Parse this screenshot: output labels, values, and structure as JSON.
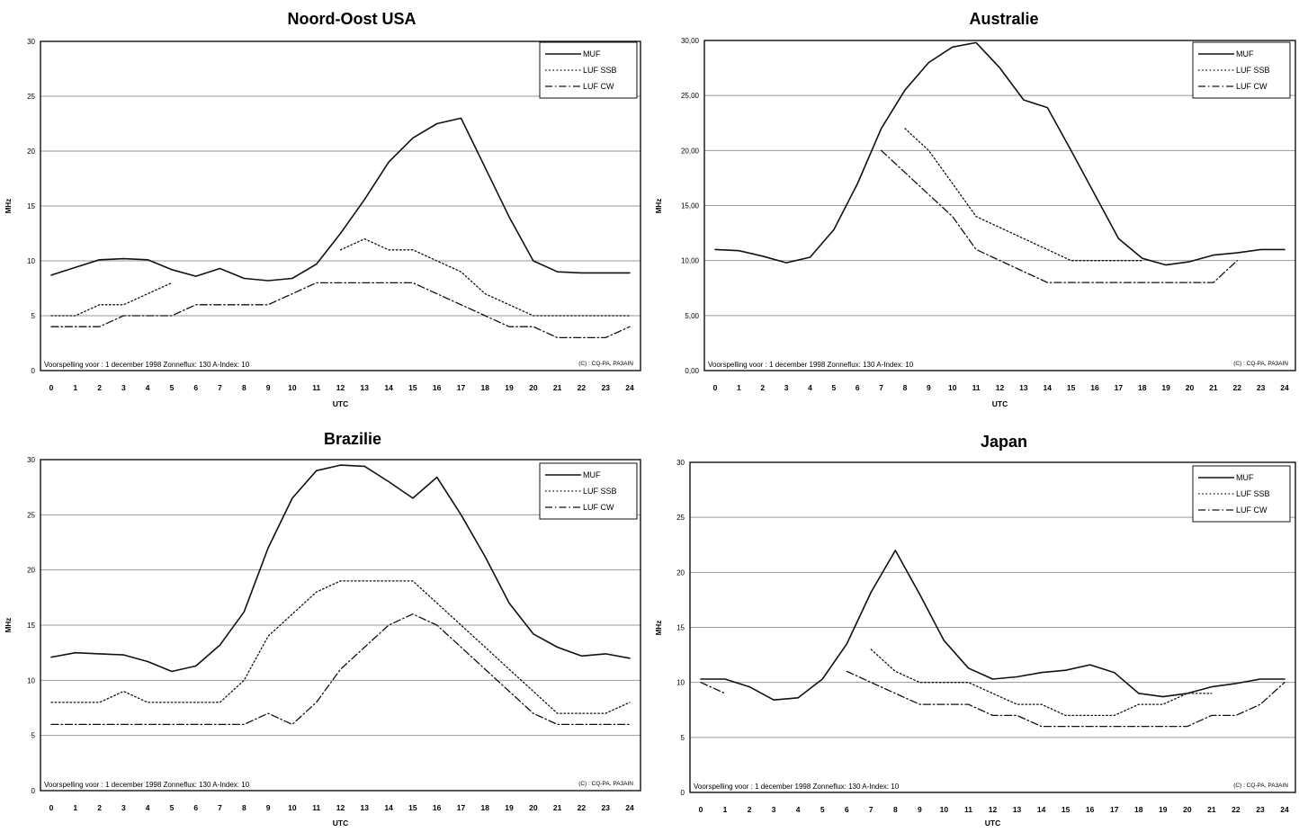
{
  "chart_data": [
    {
      "type": "line",
      "title": "Noord-Oost USA",
      "xlabel": "UTC",
      "ylabel": "MHz",
      "ylim": [
        0,
        30
      ],
      "yticks": [
        "0",
        "5",
        "10",
        "15",
        "20",
        "25",
        "30"
      ],
      "x": [
        0,
        1,
        2,
        3,
        4,
        5,
        6,
        7,
        8,
        9,
        10,
        11,
        12,
        13,
        14,
        15,
        16,
        17,
        18,
        19,
        20,
        21,
        22,
        23,
        24
      ],
      "grid": true,
      "legend_position": "top-right",
      "series": [
        {
          "name": "MUF",
          "style": "solid",
          "values": [
            8.7,
            9.4,
            10.1,
            10.2,
            10.1,
            9.2,
            8.6,
            9.3,
            8.4,
            8.2,
            8.4,
            9.7,
            12.5,
            15.6,
            19,
            21.2,
            22.5,
            23,
            18.5,
            14,
            10,
            9,
            8.9,
            8.9,
            8.9
          ]
        },
        {
          "name": "LUF SSB",
          "style": "dotted",
          "values": [
            5,
            5,
            6,
            6,
            7,
            8,
            null,
            null,
            null,
            null,
            null,
            null,
            11,
            12,
            11,
            11,
            10,
            9,
            7,
            6,
            5,
            5,
            5,
            5,
            5
          ]
        },
        {
          "name": "LUF CW",
          "style": "dashdot",
          "values": [
            4,
            4,
            4,
            5,
            5,
            5,
            6,
            6,
            6,
            6,
            7,
            8,
            8,
            8,
            8,
            8,
            7,
            6,
            5,
            4,
            4,
            3,
            3,
            3,
            4
          ]
        }
      ],
      "footer_left": "Voorspelling voor : 1 december 1998  Zonneflux: 130  A-Index: 10",
      "footer_right": "(C) : CQ-PA, PA3AIN"
    },
    {
      "type": "line",
      "title": "Australie",
      "xlabel": "UTC",
      "ylabel": "MHz",
      "ylim": [
        0,
        30
      ],
      "yticks": [
        "0,00",
        "5,00",
        "10,00",
        "15,00",
        "20,00",
        "25,00",
        "30,00"
      ],
      "x": [
        0,
        1,
        2,
        3,
        4,
        5,
        6,
        7,
        8,
        9,
        10,
        11,
        12,
        13,
        14,
        15,
        16,
        17,
        18,
        19,
        20,
        21,
        22,
        23,
        24
      ],
      "grid": true,
      "legend_position": "top-right",
      "series": [
        {
          "name": "MUF",
          "style": "solid",
          "values": [
            11,
            10.9,
            10.4,
            9.8,
            10.3,
            12.8,
            17,
            22,
            25.5,
            28,
            29.4,
            29.8,
            27.5,
            24.6,
            23.9,
            20,
            16,
            12,
            10.2,
            9.6,
            9.9,
            10.5,
            10.7,
            11,
            11
          ]
        },
        {
          "name": "LUF SSB",
          "style": "dotted",
          "values": [
            null,
            null,
            null,
            null,
            null,
            null,
            null,
            null,
            22,
            20,
            17,
            14,
            13,
            12,
            11,
            10,
            10,
            10,
            10,
            null,
            null,
            null,
            null,
            null,
            null
          ]
        },
        {
          "name": "LUF CW",
          "style": "dashdot",
          "values": [
            null,
            null,
            null,
            null,
            null,
            null,
            null,
            20,
            18,
            16,
            14,
            11,
            10,
            9,
            8,
            8,
            8,
            8,
            8,
            8,
            8,
            8,
            10,
            null,
            null
          ]
        }
      ],
      "footer_left": "Voorspelling voor : 1 december 1998  Zonneflux: 130  A-Index: 10",
      "footer_right": "(C) : CQ-PA, PA3AIN"
    },
    {
      "type": "line",
      "title": "Brazilie",
      "xlabel": "UTC",
      "ylabel": "MHz",
      "ylim": [
        0,
        30
      ],
      "yticks": [
        "0",
        "5",
        "10",
        "15",
        "20",
        "25",
        "30"
      ],
      "x": [
        0,
        1,
        2,
        3,
        4,
        5,
        6,
        7,
        8,
        9,
        10,
        11,
        12,
        13,
        14,
        15,
        16,
        17,
        18,
        19,
        20,
        21,
        22,
        23,
        24
      ],
      "grid": true,
      "legend_position": "top-right",
      "series": [
        {
          "name": "MUF",
          "style": "solid",
          "values": [
            12.1,
            12.5,
            12.4,
            12.3,
            11.7,
            10.8,
            11.3,
            13.2,
            16.2,
            22,
            26.5,
            29,
            29.5,
            29.4,
            28,
            26.5,
            28.4,
            25,
            21.2,
            17,
            14.2,
            13,
            12.2,
            12.4,
            12
          ]
        },
        {
          "name": "LUF SSB",
          "style": "dotted",
          "values": [
            8,
            8,
            8,
            9,
            8,
            8,
            8,
            8,
            10,
            14,
            16,
            18,
            19,
            19,
            19,
            19,
            17,
            15,
            13,
            11,
            9,
            7,
            7,
            7,
            8
          ]
        },
        {
          "name": "LUF CW",
          "style": "dashdot",
          "values": [
            6,
            6,
            6,
            6,
            6,
            6,
            6,
            6,
            6,
            7,
            6,
            8,
            11,
            13,
            15,
            16,
            15,
            13,
            11,
            9,
            7,
            6,
            6,
            6,
            6
          ]
        }
      ],
      "footer_left": "Voorspelling voor : 1 december 1998  Zonneflux: 130  A-Index: 10",
      "footer_right": "(C) : CQ-PA, PA3AIN"
    },
    {
      "type": "line",
      "title": "Japan",
      "xlabel": "UTC",
      "ylabel": "MHz",
      "ylim": [
        0,
        30
      ],
      "yticks": [
        "0",
        "5",
        "10",
        "15",
        "20",
        "25",
        "30"
      ],
      "x": [
        0,
        1,
        2,
        3,
        4,
        5,
        6,
        7,
        8,
        9,
        10,
        11,
        12,
        13,
        14,
        15,
        16,
        17,
        18,
        19,
        20,
        21,
        22,
        23,
        24
      ],
      "grid": true,
      "legend_position": "top-right",
      "series": [
        {
          "name": "MUF",
          "style": "solid",
          "values": [
            10.3,
            10.3,
            9.6,
            8.4,
            8.6,
            10.3,
            13.5,
            18.2,
            22,
            18,
            13.8,
            11.3,
            10.3,
            10.5,
            10.9,
            11.1,
            11.6,
            10.9,
            9,
            8.7,
            9,
            9.6,
            9.9,
            10.3,
            10.3
          ]
        },
        {
          "name": "LUF SSB",
          "style": "dotted",
          "values": [
            null,
            null,
            null,
            null,
            null,
            null,
            null,
            13,
            11,
            10,
            10,
            10,
            9,
            8,
            8,
            7,
            7,
            7,
            8,
            8,
            9,
            9,
            null,
            null,
            null
          ]
        },
        {
          "name": "LUF CW",
          "style": "dashdot",
          "values": [
            10,
            9,
            null,
            null,
            null,
            null,
            11,
            10,
            9,
            8,
            8,
            8,
            7,
            7,
            6,
            6,
            6,
            6,
            6,
            6,
            6,
            7,
            7,
            8,
            10
          ]
        }
      ],
      "footer_left": "Voorspelling voor : 1 december 1998  Zonneflux: 130  A-Index: 10",
      "footer_right": "(C) : CQ-PA, PA3AIN"
    }
  ]
}
